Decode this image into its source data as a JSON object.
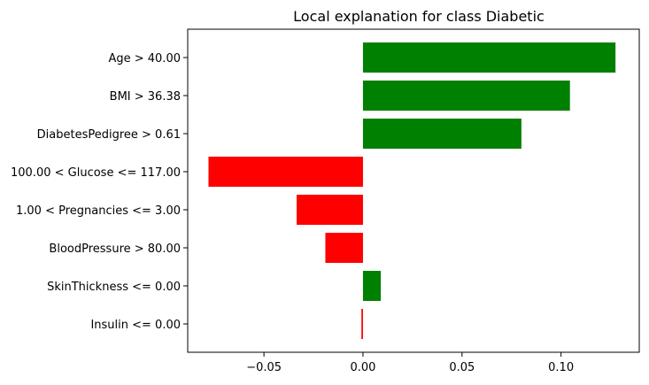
{
  "chart_data": {
    "type": "bar",
    "orientation": "horizontal",
    "title": "Local explanation for class Diabetic",
    "xlabel": "",
    "ylabel": "",
    "categories": [
      "Age > 40.00",
      "BMI > 36.38",
      "DiabetesPedigree > 0.61",
      "100.00 < Glucose <= 117.00",
      "1.00 < Pregnancies <= 3.00",
      "BloodPressure > 80.00",
      "SkinThickness <= 0.00",
      "Insulin <= 0.00"
    ],
    "values": [
      0.1275,
      0.1045,
      0.08,
      -0.078,
      -0.0335,
      -0.019,
      0.009,
      -0.0008
    ],
    "xlim": [
      -0.0885,
      0.1395
    ],
    "xticks": [
      -0.05,
      0.0,
      0.05,
      0.1
    ],
    "xtick_labels": [
      "−0.05",
      "0.00",
      "0.05",
      "0.10"
    ],
    "positive_color": "#008000",
    "negative_color": "#ff0000",
    "grid": false,
    "legend": "none"
  }
}
